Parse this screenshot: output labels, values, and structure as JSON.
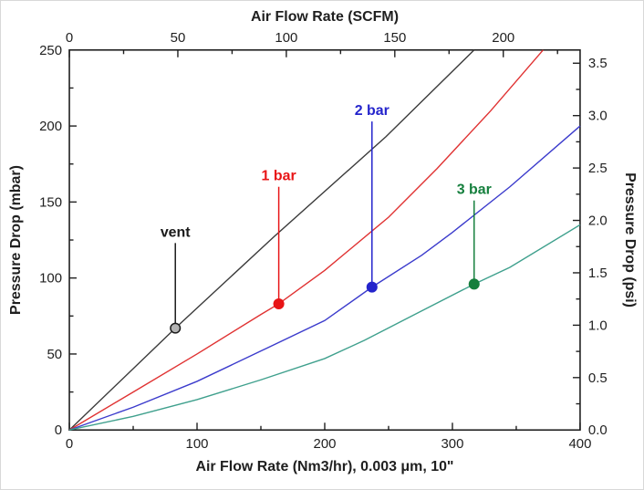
{
  "chart_data": {
    "type": "line",
    "top_axis": {
      "title": "Air Flow Rate (SCFM)",
      "max": 235.4,
      "ticks": [
        0,
        50,
        100,
        150,
        200
      ],
      "tick_labels": [
        "0",
        "50",
        "100",
        "150",
        "200"
      ],
      "minor_ticks": [
        25,
        75,
        125,
        175,
        225
      ]
    },
    "x_axis": {
      "title": "Air Flow Rate (Nm3/hr), 0.003 μm, 10\"",
      "max": 400,
      "ticks": [
        0,
        100,
        200,
        300,
        400
      ],
      "tick_labels": [
        "0",
        "100",
        "200",
        "300",
        "400"
      ],
      "minor_ticks": [
        50,
        150,
        250,
        350
      ]
    },
    "y_axis": {
      "title": "Pressure Drop (mbar)",
      "max": 250,
      "ticks": [
        0,
        50,
        100,
        150,
        200,
        250
      ],
      "tick_labels": [
        "0",
        "50",
        "100",
        "150",
        "200",
        "250"
      ],
      "minor_ticks": [
        25,
        75,
        125,
        175,
        225
      ]
    },
    "right_axis": {
      "title": "Pressure Drop (psi)",
      "max": 3.626,
      "ticks": [
        0,
        0.5,
        1.0,
        1.5,
        2.0,
        2.5,
        3.0,
        3.5
      ],
      "tick_labels": [
        "0.0",
        "0.5",
        "1.0",
        "1.5",
        "2.0",
        "2.5",
        "3.0",
        "3.5"
      ],
      "minor_ticks": [
        0.25,
        0.75,
        1.25,
        1.75,
        2.25,
        2.75,
        3.25
      ]
    },
    "grid": false,
    "legend": "inline annotations with leader lines",
    "series": [
      {
        "name": "vent",
        "line_color": "#3b3b3b",
        "points": [
          [
            0,
            0
          ],
          [
            83,
            67
          ],
          [
            160,
            127
          ],
          [
            248,
            193
          ],
          [
            317,
            250
          ]
        ]
      },
      {
        "name": "1 bar",
        "line_color": "#e03232",
        "points": [
          [
            0,
            0
          ],
          [
            50,
            25
          ],
          [
            100,
            50
          ],
          [
            150,
            76
          ],
          [
            164,
            83
          ],
          [
            200,
            105
          ],
          [
            250,
            140
          ],
          [
            288,
            172
          ],
          [
            330,
            210
          ],
          [
            371,
            250
          ]
        ]
      },
      {
        "name": "2 bar",
        "line_color": "#3b3bcc",
        "points": [
          [
            0,
            0
          ],
          [
            50,
            15
          ],
          [
            100,
            32
          ],
          [
            150,
            52
          ],
          [
            200,
            72
          ],
          [
            237,
            94
          ],
          [
            276,
            115
          ],
          [
            300,
            130
          ],
          [
            345,
            160
          ],
          [
            400,
            200
          ]
        ]
      },
      {
        "name": "3 bar",
        "line_color": "#3fa08d",
        "points": [
          [
            0,
            0
          ],
          [
            50,
            9
          ],
          [
            100,
            20
          ],
          [
            150,
            33
          ],
          [
            200,
            47
          ],
          [
            231,
            59
          ],
          [
            275,
            78
          ],
          [
            317,
            96
          ],
          [
            345,
            107
          ],
          [
            400,
            135
          ]
        ]
      }
    ],
    "annotations": [
      {
        "label": "vent",
        "color": "#1a1a1a",
        "marker_fill": "#b3b3b3",
        "marker_edge": "#1a1a1a",
        "x": 83,
        "y": 67,
        "leader_top_mbar": 123
      },
      {
        "label": "1 bar",
        "color": "#e81416",
        "marker_fill": "#e81416",
        "marker_edge": "#e81416",
        "x": 164,
        "y": 83,
        "leader_top_mbar": 160
      },
      {
        "label": "2 bar",
        "color": "#2424cc",
        "marker_fill": "#2424cc",
        "marker_edge": "#2424cc",
        "x": 237,
        "y": 94,
        "leader_top_mbar": 203
      },
      {
        "label": "3 bar",
        "color": "#157f3d",
        "marker_fill": "#157f3d",
        "marker_edge": "#157f3d",
        "x": 317,
        "y": 96,
        "leader_top_mbar": 151
      }
    ]
  }
}
